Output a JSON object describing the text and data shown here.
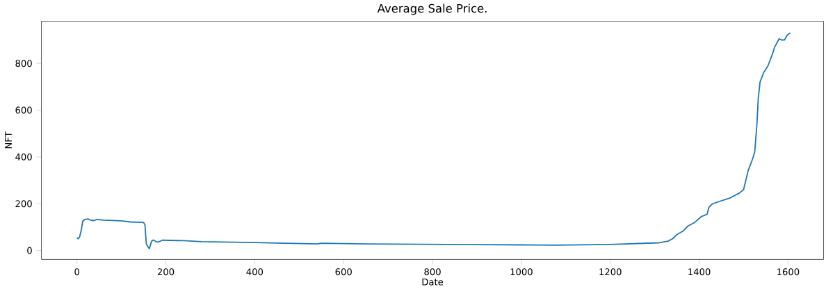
{
  "chart_data": {
    "type": "line",
    "title": "Average Sale Price.",
    "xlabel": "Date",
    "ylabel": "NFT",
    "x": [
      0,
      3,
      6,
      10,
      13,
      18,
      25,
      30,
      38,
      45,
      60,
      100,
      120,
      150,
      153,
      156,
      160,
      163,
      168,
      172,
      180,
      185,
      192,
      240,
      280,
      400,
      450,
      540,
      550,
      650,
      900,
      1000,
      1080,
      1200,
      1310,
      1330,
      1340,
      1350,
      1365,
      1375,
      1390,
      1405,
      1418,
      1422,
      1430,
      1470,
      1490,
      1500,
      1505,
      1510,
      1520,
      1525,
      1530,
      1533,
      1537,
      1545,
      1555,
      1565,
      1570,
      1580,
      1585,
      1592,
      1598,
      1605
    ],
    "series": [
      {
        "color": "#1f77b4",
        "values": [
          55,
          50,
          58,
          90,
          125,
          133,
          135,
          130,
          128,
          133,
          130,
          127,
          122,
          120,
          110,
          30,
          15,
          8,
          40,
          45,
          36,
          38,
          44,
          42,
          38,
          34,
          32,
          28,
          31,
          28,
          25,
          24,
          23,
          26,
          33,
          40,
          50,
          68,
          85,
          105,
          120,
          145,
          155,
          185,
          200,
          225,
          245,
          260,
          300,
          340,
          390,
          420,
          540,
          650,
          720,
          760,
          790,
          840,
          870,
          905,
          900,
          900,
          920,
          930
        ]
      }
    ],
    "xlim": [
      -80,
      1680
    ],
    "ylim": [
      -38,
      980
    ],
    "xticks": [
      0,
      200,
      400,
      600,
      800,
      1000,
      1200,
      1400,
      1600
    ],
    "yticks": [
      0,
      200,
      400,
      600,
      800
    ],
    "grid": false
  }
}
